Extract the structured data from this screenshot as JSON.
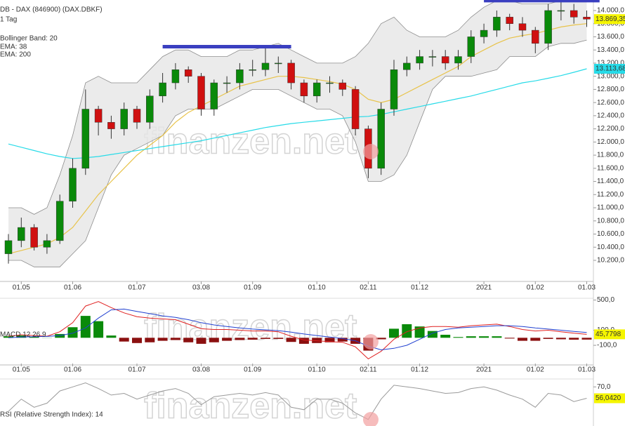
{
  "chart_data": [
    {
      "type": "candlestick",
      "title": "DB - DAX (846900) (DAX.DBKF)",
      "subtitle": "1 Tag",
      "watermark": "finanzen.net",
      "categories": [
        null,
        "01.05",
        null,
        null,
        null,
        "01.06",
        null,
        null,
        null,
        null,
        "01.07",
        null,
        null,
        null,
        null,
        "03.08",
        null,
        null,
        null,
        "01.09",
        null,
        null,
        null,
        null,
        "01.10",
        null,
        null,
        null,
        "02.11",
        null,
        null,
        null,
        "01.12",
        null,
        null,
        null,
        null,
        "2021",
        null,
        null,
        null,
        "01.02",
        null,
        null,
        null,
        "01.03"
      ],
      "open": [
        10300,
        10500,
        10700,
        10400,
        10500,
        11100,
        11600,
        12500,
        12300,
        12200,
        12500,
        12300,
        12700,
        12900,
        13100,
        13000,
        12500,
        12900,
        12900,
        13100,
        13100,
        13200,
        13200,
        12900,
        12700,
        12900,
        12900,
        12800,
        12200,
        11600,
        12500,
        13100,
        13200,
        13300,
        13300,
        13200,
        13300,
        13600,
        13700,
        13900,
        13800,
        13700,
        13500,
        14000,
        14000,
        13900
      ],
      "high": [
        10600,
        10850,
        10750,
        10600,
        11200,
        11750,
        12800,
        12550,
        12400,
        12600,
        12550,
        12800,
        13050,
        13200,
        13150,
        13050,
        12950,
        13000,
        13200,
        13250,
        13450,
        13300,
        13250,
        12950,
        12950,
        13000,
        12950,
        12850,
        12250,
        12600,
        13250,
        13300,
        13400,
        13400,
        13400,
        13400,
        13700,
        13800,
        14000,
        13950,
        13900,
        13750,
        14100,
        14150,
        14100,
        14000
      ],
      "low": [
        10150,
        10400,
        10350,
        10300,
        10450,
        11000,
        11500,
        12100,
        12050,
        12100,
        12200,
        12200,
        12600,
        12800,
        12900,
        12400,
        12400,
        12750,
        12800,
        13000,
        13000,
        13050,
        12800,
        12600,
        12600,
        12750,
        12700,
        12100,
        11450,
        11500,
        12400,
        13000,
        13100,
        13150,
        13100,
        13100,
        13200,
        13500,
        13600,
        13700,
        13600,
        13350,
        13400,
        13850,
        13800,
        13750
      ],
      "close": [
        10500,
        10700,
        10400,
        10500,
        11100,
        11600,
        12500,
        12300,
        12200,
        12500,
        12300,
        12700,
        12900,
        13100,
        13000,
        12500,
        12900,
        12900,
        13100,
        13100,
        13200,
        13200,
        12900,
        12700,
        12900,
        12900,
        12800,
        12200,
        11600,
        12500,
        13100,
        13200,
        13300,
        13300,
        13200,
        13300,
        13600,
        13700,
        13900,
        13800,
        13700,
        13500,
        14000,
        14000,
        13900,
        13869.35
      ],
      "close_label": "13.869,35",
      "up_color": "#0a8a0a",
      "down_color": "#d01010",
      "band": {
        "name": "Bollinger Band: 20",
        "color": "#8c8c8c",
        "fill": "#e6e6e6",
        "upper": [
          11000,
          11000,
          10900,
          11000,
          11500,
          12100,
          12900,
          13000,
          12900,
          12900,
          12900,
          13100,
          13300,
          13400,
          13400,
          13300,
          13300,
          13300,
          13400,
          13400,
          13450,
          13500,
          13400,
          13300,
          13200,
          13200,
          13200,
          13300,
          13500,
          13800,
          13900,
          13700,
          13600,
          13600,
          13600,
          13700,
          13900,
          14050,
          14150,
          14150,
          14100,
          14100,
          14100,
          14150,
          14150,
          14150
        ],
        "lower": [
          10200,
          10200,
          10100,
          10100,
          10100,
          10300,
          10500,
          11000,
          11500,
          11800,
          11900,
          12000,
          12100,
          12400,
          12500,
          12500,
          12500,
          12600,
          12700,
          12800,
          12800,
          12800,
          12700,
          12600,
          12500,
          12500,
          12400,
          12000,
          11400,
          11400,
          11500,
          11800,
          12300,
          12800,
          13000,
          13000,
          13000,
          13050,
          13100,
          13300,
          13300,
          13300,
          13450,
          13500,
          13500,
          13550
        ]
      },
      "series": [
        {
          "name": "EMA: 38",
          "color": "#e8c34a",
          "values": [
            10300,
            10350,
            10400,
            10450,
            10550,
            10700,
            10950,
            11200,
            11400,
            11600,
            11800,
            11950,
            12100,
            12300,
            12450,
            12550,
            12650,
            12750,
            12850,
            12900,
            12950,
            13000,
            13000,
            12980,
            12950,
            12920,
            12880,
            12800,
            12650,
            12600,
            12650,
            12750,
            12850,
            12950,
            13050,
            13150,
            13300,
            13400,
            13500,
            13580,
            13620,
            13650,
            13700,
            13750,
            13780,
            13800
          ]
        },
        {
          "name": "EMA: 200",
          "color": "#27dbe8",
          "values": [
            11970,
            11920,
            11870,
            11820,
            11780,
            11750,
            11760,
            11780,
            11810,
            11840,
            11870,
            11900,
            11930,
            11960,
            11990,
            12020,
            12060,
            12100,
            12140,
            12180,
            12220,
            12250,
            12280,
            12300,
            12320,
            12340,
            12360,
            12380,
            12390,
            12420,
            12460,
            12500,
            12540,
            12580,
            12620,
            12660,
            12700,
            12750,
            12800,
            12850,
            12900,
            12930,
            12970,
            13010,
            13060,
            13113.68
          ],
          "last_label": "13.113,68"
        }
      ],
      "levels": [
        {
          "value": 13450,
          "from": 12,
          "to": 22,
          "color": "#3a3fc0"
        },
        {
          "value": 14150,
          "from": 37,
          "to": 46,
          "color": "#3a3fc0"
        }
      ],
      "ylim": [
        9890,
        14160
      ],
      "yticks": [
        {
          "value": 10200,
          "label": "10.200,0"
        },
        {
          "value": 10400,
          "label": "10.400,0"
        },
        {
          "value": 10600,
          "label": "10.600,0"
        },
        {
          "value": 10800,
          "label": "10.800,0"
        },
        {
          "value": 11000,
          "label": "11.000,0"
        },
        {
          "value": 11200,
          "label": "11.200,0"
        },
        {
          "value": 11400,
          "label": "11.400,0"
        },
        {
          "value": 11600,
          "label": "11.600,0"
        },
        {
          "value": 11800,
          "label": "11.800,0"
        },
        {
          "value": 12000,
          "label": "12.000,0"
        },
        {
          "value": 12200,
          "label": "12.200,0"
        },
        {
          "value": 12400,
          "label": "12.400,0"
        },
        {
          "value": 12600,
          "label": "12.600,0"
        },
        {
          "value": 12800,
          "label": "12.800,0"
        },
        {
          "value": 13000,
          "label": "13.000,0"
        },
        {
          "value": 13200,
          "label": "13.200,0"
        },
        {
          "value": 13400,
          "label": "13.400,0"
        },
        {
          "value": 13600,
          "label": "13.600,0"
        },
        {
          "value": 13800,
          "label": "13.800,0"
        },
        {
          "value": 14000,
          "label": "14.000,0"
        }
      ]
    },
    {
      "type": "macd",
      "title": "MACD 12 26 9",
      "watermark": "finanzen.net",
      "categories": [
        null,
        "01.05",
        null,
        null,
        null,
        "01.06",
        null,
        null,
        null,
        null,
        "01.07",
        null,
        null,
        null,
        null,
        "03.08",
        null,
        null,
        null,
        "01.09",
        null,
        null,
        null,
        null,
        "01.10",
        null,
        null,
        null,
        "02.11",
        null,
        null,
        null,
        "01.12",
        null,
        null,
        null,
        null,
        "2021",
        null,
        null,
        null,
        "01.02",
        null,
        null,
        null,
        "01.03"
      ],
      "series": [
        {
          "name": "MACD",
          "color": "#e02020",
          "values": [
            20,
            40,
            30,
            20,
            80,
            200,
            420,
            480,
            400,
            330,
            280,
            260,
            250,
            240,
            180,
            120,
            110,
            110,
            100,
            90,
            90,
            80,
            20,
            -30,
            -40,
            -50,
            -60,
            -120,
            -280,
            -180,
            -20,
            80,
            130,
            150,
            150,
            140,
            160,
            170,
            180,
            150,
            110,
            90,
            100,
            80,
            60,
            45.7798
          ],
          "last_label": "45,7798"
        },
        {
          "name": "Signal",
          "color": "#2040d0",
          "values": [
            0,
            10,
            15,
            18,
            30,
            60,
            130,
            260,
            370,
            380,
            350,
            320,
            290,
            270,
            240,
            200,
            170,
            150,
            130,
            115,
            105,
            95,
            75,
            50,
            30,
            10,
            -10,
            -40,
            -110,
            -160,
            -140,
            -100,
            -20,
            60,
            110,
            130,
            140,
            150,
            160,
            160,
            150,
            130,
            115,
            100,
            85,
            70
          ]
        }
      ],
      "histogram": {
        "up_color": "#0a8a0a",
        "down_color": "#8b1010",
        "values": [
          20,
          30,
          15,
          2,
          50,
          140,
          290,
          220,
          30,
          -50,
          -70,
          -60,
          -40,
          -30,
          -60,
          -80,
          -60,
          -40,
          -30,
          -25,
          -15,
          -15,
          -55,
          -80,
          -70,
          -60,
          -50,
          -80,
          -170,
          -20,
          120,
          180,
          150,
          90,
          40,
          10,
          20,
          20,
          20,
          -10,
          -40,
          -40,
          -15,
          -20,
          -25,
          -24
        ]
      },
      "ylim": [
        -360,
        570
      ],
      "yticks": [
        {
          "value": 500,
          "label": "500,0"
        },
        {
          "value": 100,
          "label": "100,0"
        },
        {
          "value": -100,
          "label": "-100,0"
        }
      ]
    },
    {
      "type": "line",
      "title": "RSI (Relative Strength Index): 14",
      "watermark": "finanzen.net",
      "series": [
        {
          "name": "RSI",
          "color": "#9a9a9a",
          "values": [
            40,
            55,
            45,
            50,
            65,
            70,
            75,
            68,
            60,
            62,
            55,
            60,
            65,
            68,
            62,
            48,
            58,
            60,
            62,
            60,
            63,
            60,
            45,
            42,
            55,
            55,
            50,
            38,
            30,
            55,
            72,
            70,
            68,
            65,
            62,
            63,
            68,
            70,
            66,
            60,
            55,
            45,
            62,
            60,
            52,
            56.042
          ],
          "last_label": "56,0420"
        }
      ],
      "ylim": [
        22,
        84
      ],
      "yticks": [
        {
          "value": 70,
          "label": "70,0"
        }
      ]
    }
  ]
}
